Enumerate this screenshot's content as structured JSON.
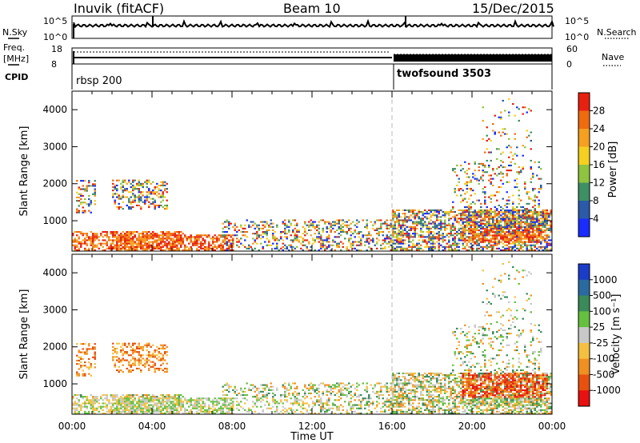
{
  "header": {
    "station": "Inuvik (fitACF)",
    "beam": "Beam 10",
    "date": "15/Dec/2015"
  },
  "status_panel": {
    "nsky_label": "N.Sky",
    "nsky_ticks": [
      "10^5",
      "10^0"
    ],
    "nsearch_label": "N.Search",
    "nsearch_ticks": [
      "10^5",
      "10^0"
    ],
    "freq_label_1": "Freq.",
    "freq_label_2": "[MHz]",
    "freq_ticks": [
      "18",
      "8"
    ],
    "nave_label": "Nave",
    "nave_ticks": [
      "60",
      "0"
    ],
    "cpid_label": "CPID",
    "cpid_segments": [
      {
        "name": "rbsp 200",
        "start_hour": 0
      },
      {
        "name": "twofsound 3503",
        "start_hour": 16
      }
    ]
  },
  "time_axis": {
    "label": "Time UT",
    "ticks": [
      "00:00",
      "04:00",
      "08:00",
      "12:00",
      "16:00",
      "20:00",
      "00:00"
    ]
  },
  "chart_data": [
    {
      "type": "heatmap",
      "name": "power-panel",
      "ylabel": "Slant Range [km]",
      "yticks": [
        1000,
        2000,
        3000,
        4000
      ],
      "xlim_hours": [
        0,
        24
      ],
      "ylim_km": [
        180,
        4500
      ],
      "colorbar_label": "Power [dB]",
      "colorbar_ticks": [
        "4",
        "8",
        "12",
        "16",
        "20",
        "24",
        "28"
      ],
      "colorbar_colors": [
        "#1a2cff",
        "#2a5aa8",
        "#3e8f64",
        "#8fc440",
        "#f5d020",
        "#f5a020",
        "#f06a10",
        "#e82010"
      ],
      "marker_hour": 16
    },
    {
      "type": "heatmap",
      "name": "velocity-panel",
      "ylabel": "Slant Range [km]",
      "yticks": [
        1000,
        2000,
        3000,
        4000
      ],
      "xlim_hours": [
        0,
        24
      ],
      "ylim_km": [
        180,
        4500
      ],
      "colorbar_label": "Velocity [m s⁻¹]",
      "colorbar_ticks": [
        "1000",
        "500",
        "100",
        "25",
        "-25",
        "-100",
        "-500",
        "-1000"
      ],
      "colorbar_colors": [
        "#1a3cc8",
        "#2a6aa0",
        "#3a8a5a",
        "#66c040",
        "#c8c8c8",
        "#f5c040",
        "#f09020",
        "#e85010",
        "#e81010"
      ],
      "marker_hour": 16
    }
  ]
}
